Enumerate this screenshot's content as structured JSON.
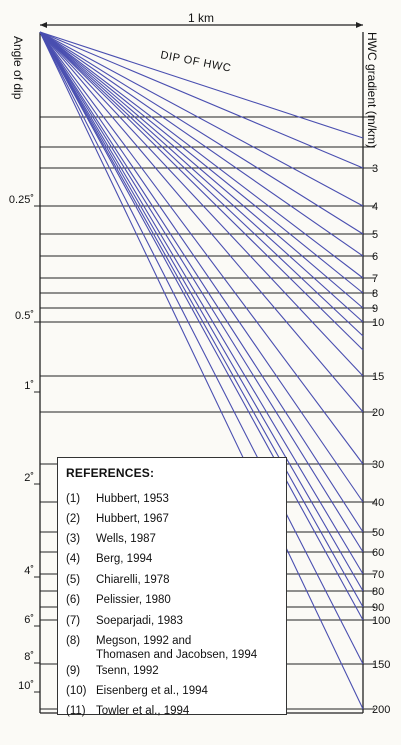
{
  "scale_label": "1 km",
  "left_axis_label": "Angle of dip",
  "right_axis_label": "HWC gradient (m/km)",
  "line_label": "DIP OF HWC",
  "colors": {
    "lines": "#4a4fb0",
    "frame": "#222222",
    "background": "#fbfaf6"
  },
  "angle_ticks": [
    "0.25˚",
    "0.5˚",
    "1˚",
    "2˚",
    "4˚",
    "6˚",
    "8˚",
    "10˚"
  ],
  "gradient_ticks": [
    "3",
    "4",
    "5",
    "6",
    "7",
    "8",
    "9",
    "10",
    "15",
    "20",
    "30",
    "40",
    "50",
    "60",
    "70",
    "80",
    "90",
    "100",
    "150",
    "200"
  ],
  "references": {
    "title": "REFERENCES:",
    "items": [
      {
        "num": "(1)",
        "text": "Hubbert, 1953"
      },
      {
        "num": "(2)",
        "text": "Hubbert, 1967"
      },
      {
        "num": "(3)",
        "text": "Wells, 1987"
      },
      {
        "num": "(4)",
        "text": "Berg, 1994"
      },
      {
        "num": "(5)",
        "text": "Chiarelli, 1978"
      },
      {
        "num": "(6)",
        "text": "Pelissier, 1980"
      },
      {
        "num": "(7)",
        "text": "Soeparjadi, 1983"
      },
      {
        "num": "(8)",
        "text": "Megson, 1992 and\nThomasen and Jacobsen, 1994"
      },
      {
        "num": "(9)",
        "text": "Tsenn, 1992"
      },
      {
        "num": "(10)",
        "text": "Eisenberg et al., 1994"
      },
      {
        "num": "(11)",
        "text": "Towler et al., 1994"
      }
    ]
  }
}
